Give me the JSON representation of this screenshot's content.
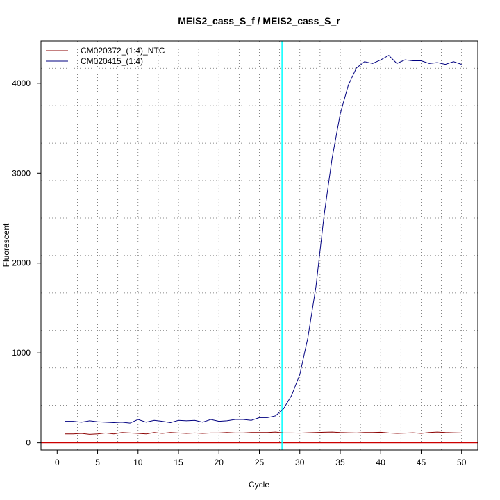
{
  "chart_data": {
    "type": "line",
    "title": "MEIS2_cass_S_f / MEIS2_cass_S_r",
    "xlabel": "Cycle",
    "ylabel": "Fluorescent",
    "xlim": [
      -2,
      52
    ],
    "ylim": [
      -80,
      4470
    ],
    "x_ticks": [
      0,
      5,
      10,
      15,
      20,
      25,
      30,
      35,
      40,
      45,
      50
    ],
    "y_ticks": [
      0,
      1000,
      2000,
      3000,
      4000
    ],
    "grid": true,
    "legend_position": "top-left",
    "threshold_line": {
      "x": 27.8,
      "color": "#00ffff"
    },
    "baseline": {
      "y": 0,
      "color": "#cc0000"
    },
    "x": [
      1,
      2,
      3,
      4,
      5,
      6,
      7,
      8,
      9,
      10,
      11,
      12,
      13,
      14,
      15,
      16,
      17,
      18,
      19,
      20,
      21,
      22,
      23,
      24,
      25,
      26,
      27,
      28,
      29,
      30,
      31,
      32,
      33,
      34,
      35,
      36,
      37,
      38,
      39,
      40,
      41,
      42,
      43,
      44,
      45,
      46,
      47,
      48,
      49,
      50
    ],
    "series": [
      {
        "name": "CM020372_(1:4)_NTC",
        "color": "#8b0000",
        "values": [
          100,
          100,
          105,
          95,
          100,
          110,
          100,
          115,
          110,
          105,
          100,
          115,
          105,
          115,
          110,
          105,
          110,
          105,
          110,
          110,
          115,
          110,
          110,
          115,
          115,
          115,
          120,
          110,
          110,
          108,
          112,
          115,
          118,
          120,
          115,
          112,
          110,
          115,
          115,
          118,
          110,
          105,
          108,
          112,
          105,
          115,
          120,
          115,
          112,
          110
        ]
      },
      {
        "name": "CM020415_(1:4)",
        "color": "#000080",
        "values": [
          240,
          240,
          230,
          245,
          235,
          230,
          225,
          230,
          220,
          260,
          230,
          250,
          240,
          225,
          250,
          245,
          250,
          230,
          260,
          240,
          245,
          260,
          260,
          250,
          280,
          280,
          300,
          380,
          530,
          760,
          1170,
          1740,
          2530,
          3170,
          3660,
          3980,
          4170,
          4240,
          4220,
          4260,
          4310,
          4220,
          4260,
          4250,
          4250,
          4220,
          4230,
          4210,
          4240,
          4210
        ]
      }
    ]
  }
}
